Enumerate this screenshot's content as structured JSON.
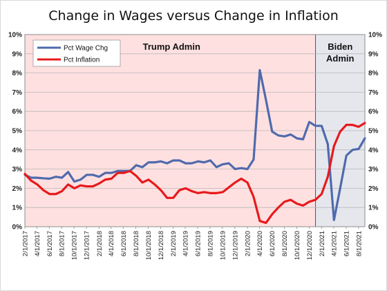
{
  "chart_data": {
    "type": "line",
    "title": "Change in Wages versus Change in Inflation",
    "xlabel": "",
    "ylabel": "",
    "ylim": [
      0,
      10
    ],
    "y_ticks": [
      "0%",
      "1%",
      "2%",
      "3%",
      "4%",
      "5%",
      "6%",
      "7%",
      "8%",
      "9%",
      "10%"
    ],
    "y2_ticks": [
      "0%",
      "1%",
      "2%",
      "3%",
      "4%",
      "5%",
      "6%",
      "7%",
      "8%",
      "9%",
      "10%"
    ],
    "grid": true,
    "legend_position": "top-left",
    "x_tick_labels": [
      "2/1/2017",
      "4/1/2017",
      "6/1/2017",
      "8/1/2017",
      "10/1/2017",
      "12/1/2017",
      "2/1/2018",
      "4/1/2018",
      "6/1/2018",
      "8/1/2018",
      "10/1/2018",
      "12/1/2018",
      "2/1/2019",
      "4/1/2019",
      "6/1/2019",
      "8/1/2019",
      "10/1/2019",
      "12/1/2019",
      "2/1/2020",
      "4/1/2020",
      "6/1/2020",
      "8/1/2020",
      "10/1/2020",
      "12/1/2020",
      "2/1/2021",
      "4/1/2021",
      "6/1/2021",
      "8/1/2021"
    ],
    "x_start": "2/1/2017",
    "x_end": "9/1/2021",
    "regions": [
      {
        "label": "Trump Admin",
        "start": "2/1/2017",
        "end": "1/1/2021",
        "color": "#ffe0e0"
      },
      {
        "label_lines": [
          "Biden",
          "Admin"
        ],
        "start": "1/1/2021",
        "end": "9/1/2021",
        "color": "#e5e7ed"
      }
    ],
    "series": [
      {
        "name": "Pct Wage Chg",
        "color": "#4f6aad",
        "values": [
          2.7,
          2.55,
          2.55,
          2.52,
          2.5,
          2.6,
          2.55,
          2.85,
          2.35,
          2.45,
          2.7,
          2.7,
          2.6,
          2.8,
          2.8,
          2.9,
          2.9,
          2.9,
          3.2,
          3.1,
          3.35,
          3.35,
          3.4,
          3.3,
          3.45,
          3.45,
          3.3,
          3.3,
          3.4,
          3.35,
          3.45,
          3.1,
          3.25,
          3.3,
          3.0,
          3.05,
          3.0,
          3.5,
          8.15,
          6.6,
          4.95,
          4.75,
          4.7,
          4.8,
          4.6,
          4.55,
          5.45,
          5.25,
          5.25,
          4.3,
          0.35,
          2.0,
          3.7,
          4.0,
          4.05,
          4.6
        ]
      },
      {
        "name": "Pct Inflation",
        "color": "#e8191c",
        "values": [
          2.75,
          2.4,
          2.2,
          1.9,
          1.7,
          1.7,
          1.85,
          2.2,
          2.0,
          2.15,
          2.1,
          2.1,
          2.25,
          2.45,
          2.5,
          2.8,
          2.8,
          2.9,
          2.65,
          2.3,
          2.45,
          2.2,
          1.9,
          1.5,
          1.5,
          1.9,
          2.0,
          1.85,
          1.75,
          1.8,
          1.75,
          1.75,
          1.8,
          2.05,
          2.3,
          2.5,
          2.3,
          1.55,
          0.3,
          0.2,
          0.65,
          1.0,
          1.3,
          1.4,
          1.2,
          1.1,
          1.3,
          1.4,
          1.7,
          2.6,
          4.2,
          4.95,
          5.3,
          5.3,
          5.2,
          5.4
        ]
      }
    ]
  }
}
